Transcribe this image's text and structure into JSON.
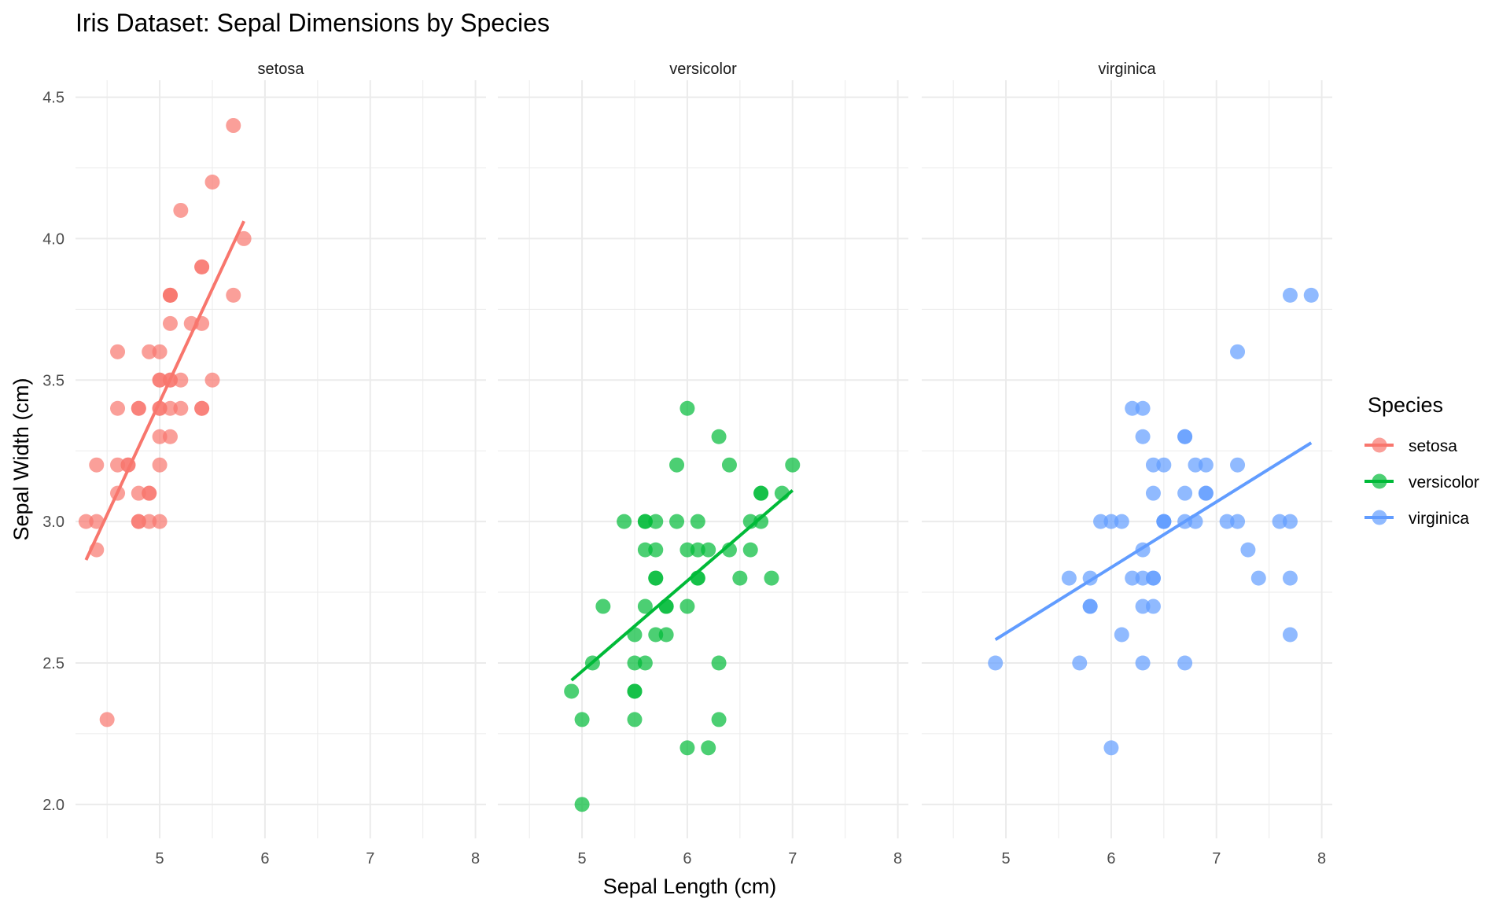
{
  "chart_data": {
    "type": "scatter",
    "title": "Iris Dataset: Sepal Dimensions by Species",
    "xlabel": "Sepal Length (cm)",
    "ylabel": "Sepal Width (cm)",
    "xlim": [
      4.2,
      8.1
    ],
    "ylim": [
      1.88,
      4.56
    ],
    "xticks": [
      5,
      6,
      7,
      8
    ],
    "xtick_labels": [
      "5",
      "6",
      "7",
      "8"
    ],
    "yticks": [
      2.0,
      2.5,
      3.0,
      3.5,
      4.0,
      4.5
    ],
    "ytick_labels": [
      "2.0",
      "2.5",
      "3.0",
      "3.5",
      "4.0",
      "4.5"
    ],
    "grid": true,
    "facets": [
      "setosa",
      "versicolor",
      "virginica"
    ],
    "legend": {
      "title": "Species",
      "position": "right",
      "entries": [
        "setosa",
        "versicolor",
        "virginica"
      ]
    },
    "colors": {
      "setosa": "#F8766D",
      "versicolor": "#00BA38",
      "virginica": "#619CFF"
    },
    "series": [
      {
        "name": "setosa",
        "trend": {
          "method": "lm",
          "intercept": -0.5694,
          "slope": 0.7985,
          "x_range": [
            4.3,
            5.8
          ]
        },
        "x": [
          5.1,
          4.9,
          4.7,
          4.6,
          5.0,
          5.4,
          4.6,
          5.0,
          4.4,
          4.9,
          5.4,
          4.8,
          4.8,
          4.3,
          5.8,
          5.7,
          5.4,
          5.1,
          5.7,
          5.1,
          5.4,
          5.1,
          4.6,
          5.1,
          4.8,
          5.0,
          5.0,
          5.2,
          5.2,
          4.7,
          4.8,
          5.4,
          5.2,
          5.5,
          4.9,
          5.0,
          5.5,
          4.9,
          4.4,
          5.1,
          5.0,
          4.5,
          4.4,
          5.0,
          5.1,
          4.8,
          5.1,
          4.6,
          5.3,
          5.0
        ],
        "y": [
          3.5,
          3.0,
          3.2,
          3.1,
          3.6,
          3.9,
          3.4,
          3.4,
          2.9,
          3.1,
          3.7,
          3.4,
          3.0,
          3.0,
          4.0,
          4.4,
          3.9,
          3.5,
          3.8,
          3.8,
          3.4,
          3.7,
          3.6,
          3.3,
          3.4,
          3.0,
          3.4,
          3.5,
          3.4,
          3.2,
          3.1,
          3.4,
          4.1,
          4.2,
          3.1,
          3.2,
          3.5,
          3.6,
          3.0,
          3.4,
          3.5,
          2.3,
          3.2,
          3.5,
          3.8,
          3.0,
          3.8,
          3.2,
          3.7,
          3.3
        ]
      },
      {
        "name": "versicolor",
        "trend": {
          "method": "lm",
          "intercept": 0.8722,
          "slope": 0.3197,
          "x_range": [
            4.9,
            7.0
          ]
        },
        "x": [
          7.0,
          6.4,
          6.9,
          5.5,
          6.5,
          5.7,
          6.3,
          4.9,
          6.6,
          5.2,
          5.0,
          5.9,
          6.0,
          6.1,
          5.6,
          6.7,
          5.6,
          5.8,
          6.2,
          5.6,
          5.9,
          6.1,
          6.3,
          6.1,
          6.4,
          6.6,
          6.8,
          6.7,
          6.0,
          5.7,
          5.5,
          5.5,
          5.8,
          6.0,
          5.4,
          6.0,
          6.7,
          6.3,
          5.6,
          5.5,
          5.5,
          6.1,
          5.8,
          5.0,
          5.6,
          5.7,
          5.7,
          6.2,
          5.1,
          5.7
        ],
        "y": [
          3.2,
          3.2,
          3.1,
          2.3,
          2.8,
          2.8,
          3.3,
          2.4,
          2.9,
          2.7,
          2.0,
          3.0,
          2.2,
          2.9,
          2.9,
          3.1,
          3.0,
          2.7,
          2.2,
          2.5,
          3.2,
          2.8,
          2.5,
          2.8,
          2.9,
          3.0,
          2.8,
          3.0,
          2.9,
          2.6,
          2.4,
          2.4,
          2.7,
          2.7,
          3.0,
          3.4,
          3.1,
          2.3,
          3.0,
          2.5,
          2.6,
          3.0,
          2.6,
          2.3,
          2.7,
          3.0,
          2.9,
          2.9,
          2.5,
          2.8
        ]
      },
      {
        "name": "virginica",
        "trend": {
          "method": "lm",
          "intercept": 1.4463,
          "slope": 0.2319,
          "x_range": [
            4.9,
            7.9
          ]
        },
        "x": [
          6.3,
          5.8,
          7.1,
          6.3,
          6.5,
          7.6,
          4.9,
          7.3,
          6.7,
          7.2,
          6.5,
          6.4,
          6.8,
          5.7,
          5.8,
          6.4,
          6.5,
          7.7,
          7.7,
          6.0,
          6.9,
          5.6,
          7.7,
          6.3,
          6.7,
          7.2,
          6.2,
          6.1,
          6.4,
          7.2,
          7.4,
          7.9,
          6.4,
          6.3,
          6.1,
          7.7,
          6.3,
          6.4,
          6.0,
          6.9,
          6.7,
          6.9,
          5.8,
          6.8,
          6.7,
          6.7,
          6.3,
          6.5,
          6.2,
          5.9
        ],
        "y": [
          3.3,
          2.7,
          3.0,
          2.9,
          3.0,
          3.0,
          2.5,
          2.9,
          2.5,
          3.6,
          3.2,
          2.7,
          3.0,
          2.5,
          2.8,
          3.2,
          3.0,
          3.8,
          2.6,
          2.2,
          3.2,
          2.8,
          2.8,
          2.7,
          3.3,
          3.2,
          2.8,
          3.0,
          2.8,
          3.0,
          2.8,
          3.8,
          2.8,
          2.8,
          2.6,
          3.0,
          3.4,
          3.1,
          3.0,
          3.1,
          3.1,
          3.1,
          2.7,
          3.2,
          3.3,
          3.0,
          2.5,
          3.0,
          3.4,
          3.0
        ]
      }
    ]
  }
}
